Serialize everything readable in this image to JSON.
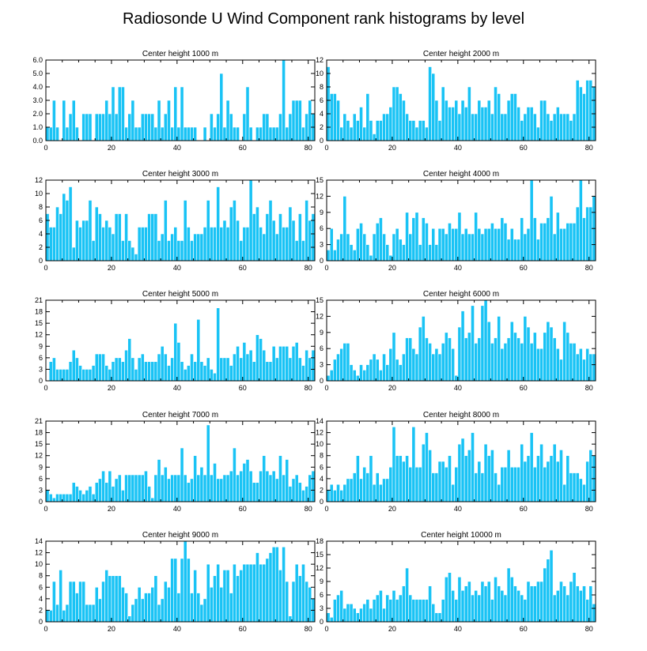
{
  "figure": {
    "title": "Radiosonde U Wind Component rank histograms by level"
  },
  "chart_data": [
    {
      "type": "bar",
      "title": "Center height 1000 m",
      "position": "row-1-left",
      "xlim": [
        0,
        82
      ],
      "ylim": [
        0,
        6
      ],
      "xticks": [
        0,
        20,
        40,
        60,
        80
      ],
      "yticks": [
        "0.0",
        "1.0",
        "2.0",
        "3.0",
        "4.0",
        "5.0",
        "6.0"
      ],
      "x_start": 0,
      "values": [
        1,
        1,
        3,
        1,
        0,
        3,
        1,
        2,
        3,
        1,
        0,
        2,
        2,
        2,
        0,
        2,
        2,
        2,
        3,
        2,
        4,
        2,
        4,
        4,
        1,
        2,
        3,
        1,
        1,
        2,
        2,
        2,
        2,
        1,
        3,
        1,
        2,
        3,
        1,
        4,
        1,
        4,
        1,
        1,
        1,
        1,
        0,
        0,
        1,
        0,
        2,
        1,
        2,
        5,
        1,
        3,
        2,
        1,
        1,
        0,
        2,
        4,
        1,
        0,
        1,
        1,
        2,
        2,
        1,
        1,
        1,
        2,
        6,
        1,
        2,
        3,
        3,
        3,
        1,
        2,
        3,
        2
      ]
    },
    {
      "type": "bar",
      "title": "Center height 2000 m",
      "position": "row-1-right",
      "xlim": [
        0,
        82
      ],
      "ylim": [
        0,
        12
      ],
      "xticks": [
        0,
        20,
        40,
        60,
        80
      ],
      "yticks": [
        "0",
        "2",
        "4",
        "6",
        "8",
        "10",
        "12"
      ],
      "x_start": 0,
      "values": [
        11,
        7,
        7,
        6,
        2,
        4,
        3,
        2,
        4,
        3,
        5,
        2,
        7,
        3,
        1,
        3,
        3,
        4,
        4,
        5,
        8,
        8,
        7,
        6,
        4,
        3,
        3,
        2,
        3,
        3,
        2,
        11,
        10,
        6,
        3,
        8,
        6,
        5,
        5,
        6,
        4,
        6,
        5,
        8,
        4,
        4,
        6,
        5,
        5,
        6,
        4,
        8,
        7,
        4,
        4,
        6,
        7,
        7,
        5,
        3,
        4,
        5,
        5,
        4,
        2,
        6,
        6,
        4,
        3,
        4,
        5,
        4,
        4,
        4,
        3,
        4,
        9,
        8,
        7,
        9,
        9,
        8
      ]
    },
    {
      "type": "bar",
      "title": "Center height 3000 m",
      "position": "row-2-left",
      "xlim": [
        0,
        82
      ],
      "ylim": [
        0,
        12
      ],
      "xticks": [
        0,
        20,
        40,
        60,
        80
      ],
      "yticks": [
        "0",
        "2",
        "4",
        "6",
        "8",
        "10",
        "12"
      ],
      "x_start": 0,
      "values": [
        7,
        5,
        5,
        8,
        7,
        10,
        9,
        11,
        2,
        6,
        5,
        6,
        6,
        9,
        3,
        8,
        7,
        5,
        6,
        5,
        4,
        7,
        7,
        3,
        7,
        3,
        2,
        1,
        5,
        5,
        5,
        7,
        7,
        7,
        3,
        4,
        9,
        3,
        4,
        5,
        3,
        3,
        9,
        5,
        3,
        4,
        4,
        4,
        5,
        9,
        5,
        5,
        11,
        5,
        6,
        5,
        8,
        9,
        6,
        3,
        5,
        5,
        12,
        7,
        8,
        5,
        4,
        7,
        9,
        6,
        4,
        7,
        5,
        5,
        8,
        6,
        3,
        7,
        3,
        9,
        6,
        7
      ]
    },
    {
      "type": "bar",
      "title": "Center height 4000 m",
      "position": "row-2-right",
      "xlim": [
        0,
        82
      ],
      "ylim": [
        0,
        15
      ],
      "xticks": [
        0,
        20,
        40,
        60,
        80
      ],
      "yticks": [
        "0",
        "3",
        "6",
        "9",
        "12",
        "15"
      ],
      "x_start": 0,
      "values": [
        2,
        6,
        2,
        4,
        5,
        12,
        5,
        3,
        2,
        6,
        7,
        5,
        3,
        1,
        5,
        7,
        8,
        5,
        3,
        1,
        5,
        6,
        4,
        3,
        9,
        5,
        8,
        9,
        3,
        8,
        7,
        3,
        6,
        3,
        6,
        6,
        5,
        7,
        6,
        6,
        9,
        5,
        6,
        5,
        5,
        9,
        6,
        5,
        6,
        6,
        7,
        6,
        6,
        8,
        7,
        4,
        6,
        4,
        4,
        8,
        5,
        6,
        15,
        8,
        4,
        7,
        7,
        8,
        12,
        5,
        9,
        6,
        6,
        7,
        7,
        7,
        10,
        15,
        8,
        10,
        10,
        12
      ]
    },
    {
      "type": "bar",
      "title": "Center height 5000 m",
      "position": "row-3-left",
      "xlim": [
        0,
        82
      ],
      "ylim": [
        0,
        21
      ],
      "xticks": [
        0,
        20,
        40,
        60,
        80
      ],
      "yticks": [
        "0",
        "3",
        "6",
        "9",
        "12",
        "15",
        "18",
        "21"
      ],
      "x_start": 0,
      "values": [
        0,
        5,
        6,
        3,
        3,
        3,
        3,
        5,
        8,
        6,
        4,
        3,
        3,
        3,
        4,
        7,
        7,
        7,
        4,
        3,
        5,
        6,
        6,
        5,
        8,
        11,
        6,
        3,
        6,
        7,
        5,
        5,
        5,
        5,
        7,
        9,
        7,
        4,
        6,
        15,
        10,
        5,
        3,
        4,
        7,
        5,
        16,
        5,
        4,
        6,
        3,
        2,
        19,
        6,
        6,
        6,
        4,
        7,
        9,
        6,
        10,
        7,
        8,
        5,
        12,
        11,
        8,
        5,
        5,
        9,
        6,
        9,
        9,
        9,
        6,
        9,
        10,
        6,
        4,
        8,
        6,
        8
      ]
    },
    {
      "type": "bar",
      "title": "Center height 6000 m",
      "position": "row-3-right",
      "xlim": [
        0,
        82
      ],
      "ylim": [
        0,
        15
      ],
      "xticks": [
        0,
        20,
        40,
        60,
        80
      ],
      "yticks": [
        "0",
        "3",
        "6",
        "9",
        "12",
        "15"
      ],
      "x_start": 0,
      "values": [
        1,
        2,
        4,
        5,
        6,
        7,
        7,
        3,
        2,
        1,
        3,
        2,
        3,
        4,
        5,
        4,
        2,
        5,
        3,
        6,
        9,
        4,
        3,
        5,
        8,
        8,
        6,
        5,
        10,
        12,
        8,
        7,
        5,
        6,
        5,
        7,
        9,
        8,
        6,
        1,
        10,
        13,
        8,
        9,
        14,
        7,
        8,
        14,
        15,
        11,
        7,
        8,
        12,
        6,
        7,
        8,
        11,
        9,
        8,
        7,
        12,
        10,
        7,
        9,
        6,
        6,
        9,
        11,
        10,
        8,
        6,
        4,
        11,
        9,
        7,
        7,
        5,
        6,
        4,
        6,
        5,
        5
      ]
    },
    {
      "type": "bar",
      "title": "Center height 7000 m",
      "position": "row-4-left",
      "xlim": [
        0,
        82
      ],
      "ylim": [
        0,
        21
      ],
      "xticks": [
        0,
        20,
        40,
        60,
        80
      ],
      "yticks": [
        "0",
        "3",
        "6",
        "9",
        "12",
        "15",
        "18",
        "21"
      ],
      "x_start": 0,
      "values": [
        3,
        2,
        1,
        2,
        2,
        2,
        2,
        2,
        5,
        4,
        3,
        2,
        3,
        4,
        2,
        5,
        6,
        8,
        5,
        8,
        4,
        6,
        7,
        3,
        7,
        7,
        7,
        7,
        7,
        7,
        8,
        4,
        1,
        7,
        11,
        7,
        9,
        6,
        7,
        7,
        7,
        14,
        7,
        5,
        6,
        12,
        7,
        9,
        7,
        20,
        7,
        10,
        6,
        6,
        7,
        7,
        8,
        14,
        7,
        8,
        10,
        11,
        8,
        5,
        5,
        8,
        12,
        8,
        7,
        8,
        6,
        12,
        7,
        11,
        4,
        6,
        7,
        5,
        3,
        4,
        7,
        8
      ]
    },
    {
      "type": "bar",
      "title": "Center height 8000 m",
      "position": "row-4-right",
      "xlim": [
        0,
        82
      ],
      "ylim": [
        0,
        14
      ],
      "xticks": [
        0,
        20,
        40,
        60,
        80
      ],
      "yticks": [
        "0",
        "2",
        "4",
        "6",
        "8",
        "10",
        "12",
        "14"
      ],
      "x_start": 0,
      "values": [
        2,
        3,
        2,
        3,
        2,
        3,
        4,
        4,
        5,
        8,
        4,
        6,
        5,
        8,
        3,
        5,
        3,
        4,
        4,
        6,
        13,
        8,
        8,
        7,
        8,
        6,
        13,
        6,
        6,
        10,
        12,
        9,
        5,
        5,
        7,
        7,
        6,
        8,
        3,
        6,
        10,
        11,
        8,
        9,
        12,
        5,
        7,
        5,
        10,
        8,
        9,
        5,
        3,
        6,
        6,
        9,
        6,
        6,
        6,
        10,
        7,
        8,
        12,
        6,
        8,
        10,
        6,
        7,
        8,
        10,
        7,
        9,
        3,
        8,
        5,
        5,
        5,
        4,
        3,
        7,
        9,
        8
      ]
    },
    {
      "type": "bar",
      "title": "Center height 9000 m",
      "position": "row-5-left",
      "xlim": [
        0,
        82
      ],
      "ylim": [
        0,
        14
      ],
      "xticks": [
        0,
        20,
        40,
        60,
        80
      ],
      "yticks": [
        "0",
        "2",
        "4",
        "6",
        "8",
        "10",
        "12",
        "14"
      ],
      "x_start": 0,
      "values": [
        2,
        2,
        7,
        3,
        9,
        2,
        3,
        7,
        7,
        5,
        7,
        7,
        3,
        3,
        3,
        6,
        4,
        7,
        9,
        8,
        8,
        8,
        8,
        6,
        5,
        1,
        3,
        4,
        6,
        4,
        5,
        5,
        6,
        8,
        3,
        4,
        7,
        6,
        11,
        11,
        5,
        11,
        14,
        11,
        5,
        9,
        5,
        3,
        4,
        10,
        6,
        8,
        10,
        6,
        9,
        9,
        5,
        10,
        8,
        9,
        10,
        10,
        10,
        10,
        12,
        10,
        10,
        11,
        12,
        13,
        13,
        9,
        13,
        7,
        1,
        7,
        10,
        8,
        10,
        7,
        6,
        4
      ]
    },
    {
      "type": "bar",
      "title": "Center height 10000 m",
      "position": "row-5-right",
      "xlim": [
        0,
        82
      ],
      "ylim": [
        0,
        18
      ],
      "xticks": [
        0,
        20,
        40,
        60,
        80
      ],
      "yticks": [
        "0",
        "3",
        "6",
        "9",
        "12",
        "15",
        "18"
      ],
      "x_start": 0,
      "values": [
        2,
        1,
        5,
        6,
        7,
        3,
        4,
        4,
        3,
        2,
        3,
        4,
        5,
        3,
        5,
        6,
        7,
        3,
        6,
        5,
        7,
        5,
        6,
        8,
        12,
        6,
        5,
        5,
        5,
        5,
        5,
        8,
        4,
        2,
        2,
        5,
        10,
        11,
        7,
        5,
        10,
        7,
        8,
        9,
        6,
        7,
        6,
        9,
        8,
        9,
        5,
        10,
        8,
        7,
        6,
        12,
        10,
        8,
        7,
        6,
        5,
        9,
        8,
        8,
        9,
        9,
        12,
        14,
        16,
        6,
        7,
        9,
        8,
        6,
        9,
        11,
        8,
        7,
        8,
        5,
        8,
        4
      ]
    }
  ]
}
